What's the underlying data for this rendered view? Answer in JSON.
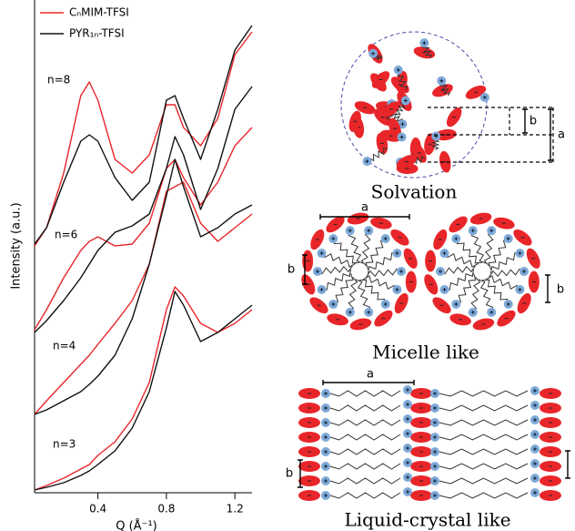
{
  "chart_data": {
    "type": "line",
    "xlabel": "Q (Å⁻¹)",
    "ylabel": "Intensity (a.u.)",
    "x": [
      0.03,
      0.1,
      0.2,
      0.3,
      0.35,
      0.4,
      0.5,
      0.6,
      0.7,
      0.8,
      0.85,
      0.9,
      1.0,
      1.1,
      1.2,
      1.3
    ],
    "xlim": [
      0.03,
      1.3
    ],
    "xticks": [
      0.4,
      0.8,
      1.2
    ],
    "ylim": [
      0,
      535
    ],
    "annotations": [
      "n=8",
      "n=6",
      "n=4",
      "n=3"
    ],
    "series": [
      {
        "name": "CₙMIM-TFSI",
        "color": "#e8262a",
        "curves": [
          [
            270,
            290,
            350,
            435,
            450,
            430,
            365,
            350,
            370,
            425,
            425,
            400,
            380,
            410,
            480,
            505
          ],
          [
            178,
            200,
            235,
            265,
            275,
            280,
            270,
            272,
            295,
            355,
            365,
            345,
            315,
            340,
            380,
            400
          ],
          [
            85,
            100,
            120,
            140,
            150,
            162,
            185,
            210,
            250,
            330,
            335,
            340,
            295,
            275,
            290,
            305
          ],
          [
            2,
            7,
            15,
            25,
            30,
            40,
            55,
            80,
            120,
            200,
            225,
            215,
            185,
            175,
            185,
            200
          ]
        ]
      },
      {
        "name": "PYR₁ₙ-TFSI",
        "color": "#111111",
        "curves": [
          [
            272,
            290,
            340,
            385,
            392,
            385,
            345,
            320,
            340,
            430,
            435,
            410,
            365,
            420,
            485,
            512
          ],
          [
            175,
            188,
            210,
            235,
            250,
            265,
            285,
            292,
            305,
            355,
            390,
            370,
            310,
            355,
            420,
            445
          ],
          [
            85,
            90,
            100,
            110,
            118,
            127,
            150,
            190,
            250,
            325,
            365,
            335,
            280,
            290,
            305,
            315
          ],
          [
            2,
            5,
            10,
            18,
            23,
            30,
            45,
            70,
            110,
            180,
            220,
            205,
            165,
            175,
            190,
            205
          ]
        ]
      }
    ]
  },
  "diagram": {
    "panels": [
      {
        "title": "Solvation",
        "labels": [
          "b",
          "a"
        ]
      },
      {
        "title": "Micelle like",
        "labels": [
          "a",
          "b",
          "b"
        ]
      },
      {
        "title": "Liquid-crystal like",
        "labels": [
          "a",
          "b"
        ]
      }
    ]
  }
}
